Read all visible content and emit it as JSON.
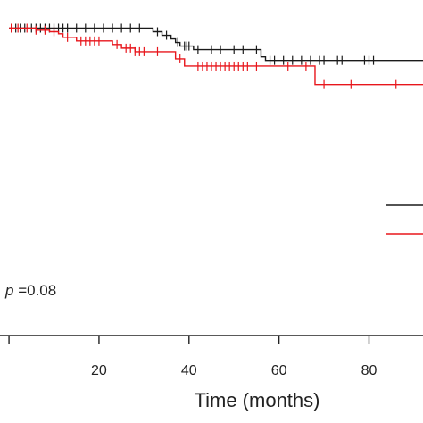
{
  "chart_data": {
    "type": "line",
    "subtype": "kaplan-meier",
    "title": "",
    "xlabel": "Time (months)",
    "ylabel": "",
    "xlim": [
      -2,
      92
    ],
    "ylim": [
      0.4,
      1.02
    ],
    "x_ticks": [
      {
        "value": 0,
        "label": ""
      },
      {
        "value": 20,
        "label": "20"
      },
      {
        "value": 40,
        "label": "40"
      },
      {
        "value": 60,
        "label": "60"
      },
      {
        "value": 80,
        "label": "80"
      }
    ],
    "grid": false,
    "legend": {
      "placement": "right",
      "entries_visible": "line-samples-only"
    },
    "annotation": {
      "prefix": "p",
      "value_text": " =0.08"
    },
    "series": [
      {
        "color": "#1a1a1a",
        "steps": [
          [
            0,
            1.0
          ],
          [
            32,
            0.993
          ],
          [
            34,
            0.986
          ],
          [
            36,
            0.979
          ],
          [
            37,
            0.972
          ],
          [
            38,
            0.965
          ],
          [
            41,
            0.958
          ],
          [
            56,
            0.944
          ],
          [
            57,
            0.937
          ]
        ],
        "end_x": 92,
        "censors": [
          0.5,
          1.5,
          2.5,
          3.5,
          5,
          6,
          7,
          8,
          9,
          10,
          11,
          12,
          13,
          15,
          17,
          19,
          21,
          23,
          25,
          27,
          29,
          33,
          35,
          37.5,
          39,
          39.5,
          40,
          42,
          45,
          47,
          50,
          52,
          55,
          58,
          59,
          61,
          63,
          65,
          67,
          69,
          70,
          73,
          74,
          79,
          80,
          81
        ]
      },
      {
        "color": "#e8161c",
        "steps": [
          [
            0,
            1.0
          ],
          [
            6,
            0.996
          ],
          [
            9,
            0.993
          ],
          [
            11,
            0.989
          ],
          [
            12,
            0.982
          ],
          [
            15,
            0.975
          ],
          [
            23,
            0.968
          ],
          [
            25,
            0.961
          ],
          [
            28,
            0.954
          ],
          [
            37,
            0.94
          ],
          [
            39,
            0.926
          ],
          [
            68,
            0.89
          ]
        ],
        "end_x": 92,
        "censors": [
          0.5,
          2,
          4,
          6,
          8,
          10,
          13,
          16,
          17,
          18,
          19,
          20,
          24,
          26,
          27,
          28,
          29,
          30,
          33,
          38,
          42,
          43,
          44,
          45,
          46,
          47,
          48,
          49,
          50,
          51,
          52,
          53,
          55,
          62,
          66,
          70,
          76,
          86
        ]
      }
    ]
  }
}
